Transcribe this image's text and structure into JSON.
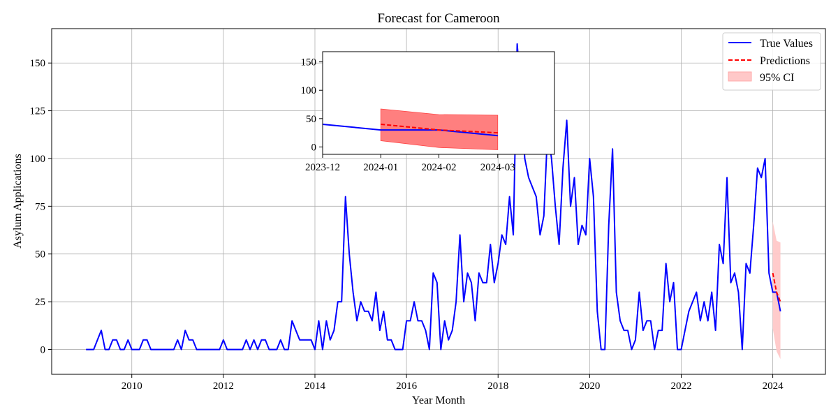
{
  "chart_data": {
    "type": "line",
    "title": "Forecast for Cameroon",
    "xlabel": "Year Month",
    "ylabel": "Asylum Applications",
    "xlim": [
      2008.25,
      2025.15
    ],
    "ylim": [
      -13,
      168
    ],
    "x_ticks": [
      2010,
      2012,
      2014,
      2016,
      2018,
      2020,
      2022,
      2024
    ],
    "y_ticks": [
      0,
      25,
      50,
      75,
      100,
      125,
      150
    ],
    "grid": true,
    "legend_position": "top-right",
    "legend": [
      "True Values",
      "Predictions",
      "95% CI"
    ],
    "colors": {
      "true": "#0000ff",
      "pred": "#ff0000",
      "ci": "#ffc8c8",
      "inset_ci": "#ff7f7f"
    },
    "series": [
      {
        "name": "True Values",
        "x": [
          2009.0,
          2009.083,
          2009.167,
          2009.25,
          2009.333,
          2009.417,
          2009.5,
          2009.583,
          2009.667,
          2009.75,
          2009.833,
          2009.917,
          2010.0,
          2010.083,
          2010.167,
          2010.25,
          2010.333,
          2010.417,
          2010.5,
          2010.583,
          2010.667,
          2010.75,
          2010.833,
          2010.917,
          2011.0,
          2011.083,
          2011.167,
          2011.25,
          2011.333,
          2011.417,
          2011.5,
          2011.583,
          2011.667,
          2011.75,
          2011.833,
          2011.917,
          2012.0,
          2012.083,
          2012.167,
          2012.25,
          2012.333,
          2012.417,
          2012.5,
          2012.583,
          2012.667,
          2012.75,
          2012.833,
          2012.917,
          2013.0,
          2013.083,
          2013.167,
          2013.25,
          2013.333,
          2013.417,
          2013.5,
          2013.583,
          2013.667,
          2013.75,
          2013.833,
          2013.917,
          2014.0,
          2014.083,
          2014.167,
          2014.25,
          2014.333,
          2014.417,
          2014.5,
          2014.583,
          2014.667,
          2014.75,
          2014.833,
          2014.917,
          2015.0,
          2015.083,
          2015.167,
          2015.25,
          2015.333,
          2015.417,
          2015.5,
          2015.583,
          2015.667,
          2015.75,
          2015.833,
          2015.917,
          2016.0,
          2016.083,
          2016.167,
          2016.25,
          2016.333,
          2016.417,
          2016.5,
          2016.583,
          2016.667,
          2016.75,
          2016.833,
          2016.917,
          2017.0,
          2017.083,
          2017.167,
          2017.25,
          2017.333,
          2017.417,
          2017.5,
          2017.583,
          2017.667,
          2017.75,
          2017.833,
          2017.917,
          2018.0,
          2018.083,
          2018.167,
          2018.25,
          2018.333,
          2018.417,
          2018.5,
          2018.583,
          2018.667,
          2018.75,
          2018.833,
          2018.917,
          2019.0,
          2019.083,
          2019.167,
          2019.25,
          2019.333,
          2019.417,
          2019.5,
          2019.583,
          2019.667,
          2019.75,
          2019.833,
          2019.917,
          2020.0,
          2020.083,
          2020.167,
          2020.25,
          2020.333,
          2020.417,
          2020.5,
          2020.583,
          2020.667,
          2020.75,
          2020.833,
          2020.917,
          2021.0,
          2021.083,
          2021.167,
          2021.25,
          2021.333,
          2021.417,
          2021.5,
          2021.583,
          2021.667,
          2021.75,
          2021.833,
          2021.917,
          2022.0,
          2022.083,
          2022.167,
          2022.25,
          2022.333,
          2022.417,
          2022.5,
          2022.583,
          2022.667,
          2022.75,
          2022.833,
          2022.917,
          2023.0,
          2023.083,
          2023.167,
          2023.25,
          2023.333,
          2023.417,
          2023.5,
          2023.583,
          2023.667,
          2023.75,
          2023.833,
          2023.917,
          2024.0,
          2024.083,
          2024.167
        ],
        "values": [
          0,
          0,
          0,
          5,
          10,
          0,
          0,
          5,
          5,
          0,
          0,
          5,
          0,
          0,
          0,
          5,
          5,
          0,
          0,
          0,
          0,
          0,
          0,
          0,
          5,
          0,
          10,
          5,
          5,
          0,
          0,
          0,
          0,
          0,
          0,
          0,
          5,
          0,
          0,
          0,
          0,
          0,
          5,
          0,
          5,
          0,
          5,
          5,
          0,
          0,
          0,
          5,
          0,
          0,
          15,
          10,
          5,
          5,
          5,
          5,
          0,
          15,
          0,
          15,
          5,
          10,
          25,
          25,
          80,
          50,
          30,
          15,
          25,
          20,
          20,
          15,
          30,
          10,
          20,
          5,
          5,
          0,
          0,
          0,
          15,
          15,
          25,
          15,
          15,
          10,
          0,
          40,
          35,
          0,
          15,
          5,
          10,
          25,
          60,
          25,
          40,
          35,
          15,
          40,
          35,
          35,
          55,
          35,
          45,
          60,
          55,
          80,
          60,
          160,
          135,
          100,
          90,
          85,
          80,
          60,
          70,
          115,
          100,
          75,
          55,
          95,
          120,
          75,
          90,
          55,
          65,
          60,
          100,
          80,
          20,
          0,
          0,
          65,
          105,
          30,
          15,
          10,
          10,
          0,
          5,
          30,
          10,
          15,
          15,
          0,
          10,
          10,
          45,
          25,
          35,
          0,
          0,
          10,
          20,
          25,
          30,
          15,
          25,
          15,
          30,
          10,
          55,
          45,
          90,
          35,
          40,
          30,
          0,
          45,
          40,
          65,
          95,
          90,
          100,
          40,
          30,
          30,
          20
        ]
      },
      {
        "name": "Predictions",
        "x": [
          2024.0,
          2024.083,
          2024.167
        ],
        "values": [
          40,
          30,
          25
        ]
      }
    ],
    "ci": {
      "name": "95% CI",
      "x": [
        2024.0,
        2024.083,
        2024.167
      ],
      "lower": [
        11,
        -1,
        -5
      ],
      "upper": [
        67,
        57,
        56
      ]
    },
    "inset": {
      "x_ticks": [
        "2023-12",
        "2024-01",
        "2024-02",
        "2024-03"
      ],
      "y_ticks": [
        0,
        50,
        100,
        150
      ],
      "xlim": [
        2023.917,
        2024.248
      ],
      "ylim": [
        -13,
        168
      ],
      "true": {
        "x": [
          2023.917,
          2024.0,
          2024.083,
          2024.167
        ],
        "values": [
          40,
          30,
          30,
          20
        ]
      },
      "pred": {
        "x": [
          2024.0,
          2024.083,
          2024.167
        ],
        "values": [
          40,
          30,
          25
        ]
      },
      "ci": {
        "x": [
          2024.0,
          2024.083,
          2024.167
        ],
        "lower": [
          11,
          -1,
          -5
        ],
        "upper": [
          67,
          57,
          56
        ]
      }
    }
  }
}
